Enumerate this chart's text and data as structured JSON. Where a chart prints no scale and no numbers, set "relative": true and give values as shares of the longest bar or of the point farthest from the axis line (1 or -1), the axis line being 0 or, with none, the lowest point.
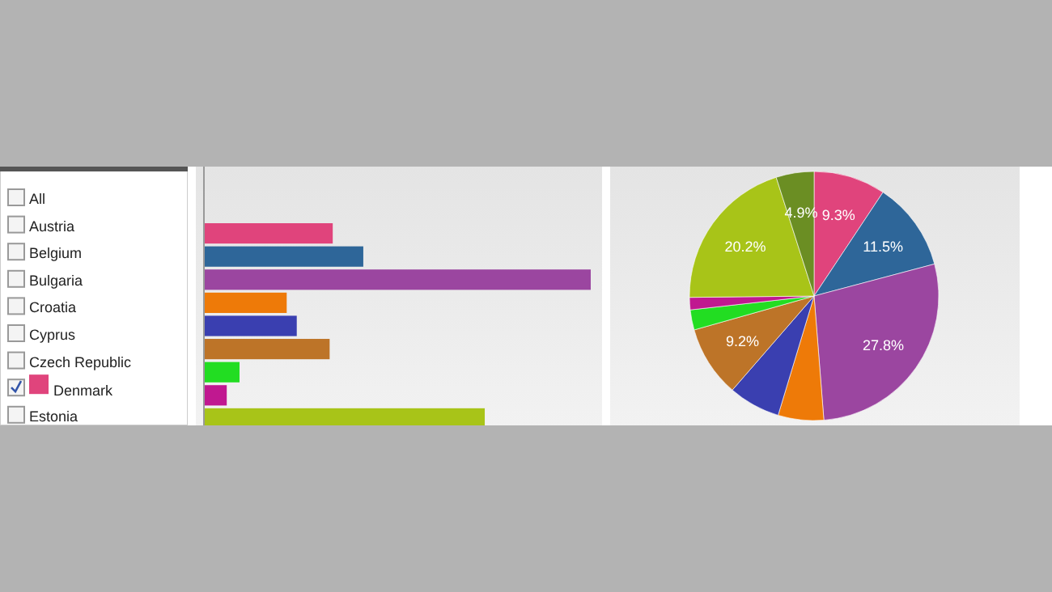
{
  "chart_data": [
    {
      "type": "other",
      "annotations": [
        "All",
        "Austria",
        "Belgium",
        "Bulgaria",
        "Croatia",
        "Cyprus",
        "Czech Republic",
        "Denmark",
        "Estonia"
      ]
    },
    {
      "type": "bar",
      "orientation": "horizontal",
      "relative": true,
      "categories": [
        null,
        null,
        null,
        null,
        null,
        null,
        null,
        null,
        null
      ],
      "values": [
        0.333,
        0.412,
        1,
        0.214,
        0.24,
        0.325,
        0.092,
        0.059,
        0.726
      ],
      "colors": [
        "#e0447c",
        "#2e6699",
        "#9b46a0",
        "#ee7a08",
        "#3a3fb0",
        "#bd7428",
        "#22dd22",
        "#c01890",
        "#a8c418"
      ]
    },
    {
      "type": "pie",
      "categories": [
        null,
        null,
        null,
        null,
        null,
        null,
        null,
        null,
        null,
        null
      ],
      "values": [
        9.3,
        11.5,
        27.8,
        5.9,
        6.7,
        9.2,
        2.6,
        1.6,
        20.2,
        4.9
      ],
      "value_labels": [
        "9.3%",
        "11.5%",
        "27.8%",
        null,
        null,
        "9.2%",
        null,
        null,
        "20.2%",
        "4.9%"
      ],
      "colors": [
        "#e0447c",
        "#2e6699",
        "#9b46a0",
        "#ee7a08",
        "#3a3fb0",
        "#bd7428",
        "#22dd22",
        "#c01890",
        "#a8c418",
        "#6b8e23"
      ]
    }
  ]
}
